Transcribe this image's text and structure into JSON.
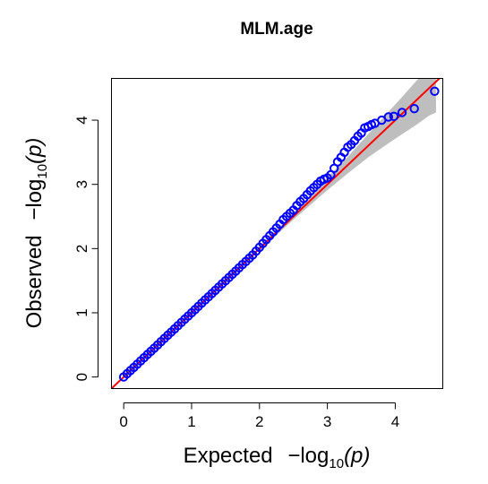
{
  "chart_data": {
    "type": "scatter",
    "title": "MLM.age",
    "xlabel": {
      "prefix": "Expected",
      "minus": "−",
      "log": "log",
      "base": "10",
      "arg": "(p)"
    },
    "ylabel": {
      "prefix": "Observed",
      "minus": "−",
      "log": "log",
      "base": "10",
      "arg": "(p)"
    },
    "xlim": [
      -0.18,
      4.7
    ],
    "ylim": [
      -0.18,
      4.65
    ],
    "xticks": [
      0,
      1,
      2,
      3,
      4
    ],
    "yticks": [
      0,
      1,
      2,
      3,
      4
    ],
    "xtick_labels": [
      "0",
      "1",
      "2",
      "3",
      "4"
    ],
    "ytick_labels": [
      "0",
      "1",
      "2",
      "3",
      "4"
    ],
    "grid": false,
    "reference_line": {
      "slope": 1,
      "intercept": 0,
      "color": "#ff0000"
    },
    "confidence_band": {
      "color": "#bebebe",
      "x": [
        2.0,
        2.5,
        3.0,
        3.3,
        3.6,
        3.9,
        4.1,
        4.3,
        4.5,
        4.6
      ],
      "lower": [
        1.97,
        2.45,
        2.91,
        3.17,
        3.42,
        3.64,
        3.78,
        3.92,
        4.07,
        4.12
      ],
      "upper": [
        2.03,
        2.56,
        3.11,
        3.43,
        3.78,
        4.13,
        4.36,
        4.6,
        4.83,
        4.95
      ]
    },
    "point_color": "#0000ff",
    "series": [
      {
        "marker": "open-circle",
        "x": [
          0.0,
          0.05,
          0.1,
          0.15,
          0.2,
          0.25,
          0.3,
          0.35,
          0.4,
          0.45,
          0.5,
          0.55,
          0.6,
          0.65,
          0.7,
          0.75,
          0.8,
          0.85,
          0.9,
          0.95,
          1.0,
          1.05,
          1.1,
          1.15,
          1.2,
          1.25,
          1.3,
          1.35,
          1.4,
          1.45,
          1.5,
          1.55,
          1.6,
          1.65,
          1.7,
          1.75,
          1.8,
          1.85,
          1.9,
          1.95,
          2.0,
          2.05,
          2.1,
          2.15,
          2.2,
          2.25,
          2.3,
          2.35,
          2.4,
          2.45,
          2.5,
          2.55,
          2.6,
          2.65,
          2.7,
          2.75,
          2.8,
          2.85,
          2.9,
          2.95,
          3.0,
          3.05,
          3.1,
          3.15,
          3.2,
          3.25,
          3.3,
          3.35,
          3.4,
          3.45,
          3.5,
          3.55,
          3.6,
          3.65,
          3.7,
          3.8,
          3.9,
          3.98,
          4.1,
          4.28,
          4.58
        ],
        "y": [
          0.0,
          0.05,
          0.1,
          0.15,
          0.2,
          0.25,
          0.3,
          0.35,
          0.4,
          0.45,
          0.5,
          0.55,
          0.6,
          0.65,
          0.7,
          0.75,
          0.8,
          0.85,
          0.9,
          0.95,
          1.0,
          1.05,
          1.1,
          1.15,
          1.2,
          1.25,
          1.3,
          1.35,
          1.4,
          1.45,
          1.5,
          1.55,
          1.6,
          1.65,
          1.7,
          1.75,
          1.8,
          1.85,
          1.9,
          1.96,
          2.02,
          2.08,
          2.14,
          2.2,
          2.26,
          2.32,
          2.38,
          2.45,
          2.5,
          2.55,
          2.6,
          2.67,
          2.73,
          2.78,
          2.84,
          2.9,
          2.95,
          3.0,
          3.05,
          3.08,
          3.1,
          3.15,
          3.25,
          3.35,
          3.42,
          3.5,
          3.58,
          3.62,
          3.68,
          3.75,
          3.8,
          3.88,
          3.9,
          3.93,
          3.95,
          4.0,
          4.05,
          4.06,
          4.12,
          4.18,
          4.45
        ]
      }
    ]
  }
}
